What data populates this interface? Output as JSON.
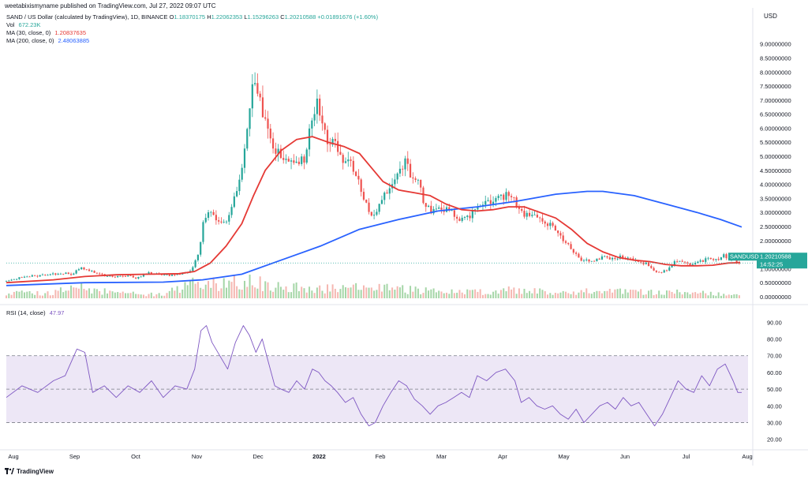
{
  "header": {
    "published_by": "weetabixismyname published on TradingView.com, Jul 27, 2022 09:07 UTC"
  },
  "legend": {
    "symbol": "SAND / US Dollar (calculated by TradingView), 1D, BINANCE",
    "o_label": "O",
    "o_value": "1.18370175",
    "h_label": "H",
    "h_value": "1.22062353",
    "l_label": "L",
    "l_value": "1.15296263",
    "c_label": "C",
    "c_value": "1.20210588",
    "change": "+0.01891676 (+1.60%)",
    "vol_label": "Vol",
    "vol_value": "672.23K",
    "ma30_label": "MA (30, close, 0)",
    "ma30_value": "1.20837635",
    "ma200_label": "MA (200, close, 0)",
    "ma200_value": "2.48063885",
    "rsi_label": "RSI (14, close)",
    "rsi_value": "47.97"
  },
  "price_axis": {
    "currency": "USD",
    "ticks": [
      "9.00000000",
      "8.50000000",
      "8.00000000",
      "7.50000000",
      "7.00000000",
      "6.50000000",
      "6.00000000",
      "5.50000000",
      "5.00000000",
      "4.50000000",
      "4.00000000",
      "3.50000000",
      "3.00000000",
      "2.50000000",
      "2.00000000",
      "1.50000000",
      "1.00000000",
      "0.50000000",
      "0.00000000"
    ],
    "last_price_label": "1.20210588",
    "symbol_tag": "SANDUSD",
    "countdown": "14:52:25"
  },
  "rsi_axis": {
    "ticks": [
      "90.00",
      "80.00",
      "70.00",
      "60.00",
      "50.00",
      "40.00",
      "30.00",
      "20.00"
    ]
  },
  "time_axis": {
    "labels": [
      "Aug",
      "Sep",
      "Oct",
      "Nov",
      "Dec",
      "2022",
      "Feb",
      "Mar",
      "Apr",
      "May",
      "Jun",
      "Jul",
      "Aug"
    ]
  },
  "footer": {
    "brand": "TradingView"
  },
  "colors": {
    "up": "#26a69a",
    "down": "#ef5350",
    "ma30": "#e53935",
    "ma200": "#2962ff",
    "rsi_line": "#7e57c2",
    "rsi_band": "#ede7f6",
    "tag_bg": "#26a69a"
  },
  "chart_data": {
    "type": "candlestick",
    "ylim_price": [
      0,
      9.3
    ],
    "ylim_rsi": [
      17,
      93
    ],
    "rsi_levels": [
      70,
      50,
      30
    ],
    "price_path": [
      [
        0,
        0.55
      ],
      [
        20,
        0.7
      ],
      [
        40,
        0.75
      ],
      [
        60,
        0.8
      ],
      [
        70,
        0.85
      ],
      [
        85,
        0.8
      ],
      [
        95,
        1.05
      ],
      [
        110,
        0.9
      ],
      [
        125,
        0.75
      ],
      [
        140,
        0.7
      ],
      [
        155,
        0.75
      ],
      [
        165,
        0.65
      ],
      [
        180,
        0.85
      ],
      [
        195,
        0.8
      ],
      [
        215,
        0.75
      ],
      [
        235,
        0.9
      ],
      [
        245,
        1.6
      ],
      [
        252,
        2.8
      ],
      [
        262,
        3.1
      ],
      [
        272,
        2.5
      ],
      [
        282,
        2.8
      ],
      [
        292,
        3.6
      ],
      [
        302,
        5.0
      ],
      [
        308,
        6.2
      ],
      [
        314,
        7.6
      ],
      [
        320,
        7.3
      ],
      [
        326,
        6.8
      ],
      [
        332,
        5.8
      ],
      [
        340,
        5.4
      ],
      [
        350,
        5.1
      ],
      [
        360,
        4.9
      ],
      [
        372,
        4.7
      ],
      [
        382,
        5.0
      ],
      [
        390,
        6.5
      ],
      [
        396,
        6.9
      ],
      [
        404,
        6.0
      ],
      [
        412,
        5.5
      ],
      [
        420,
        5.3
      ],
      [
        430,
        4.9
      ],
      [
        440,
        4.6
      ],
      [
        450,
        4.0
      ],
      [
        460,
        3.2
      ],
      [
        466,
        2.8
      ],
      [
        472,
        3.0
      ],
      [
        480,
        3.6
      ],
      [
        490,
        4.0
      ],
      [
        500,
        4.5
      ],
      [
        508,
        4.8
      ],
      [
        516,
        4.3
      ],
      [
        524,
        4.1
      ],
      [
        532,
        3.4
      ],
      [
        540,
        3.0
      ],
      [
        550,
        3.2
      ],
      [
        560,
        3.1
      ],
      [
        570,
        2.9
      ],
      [
        580,
        2.8
      ],
      [
        590,
        2.9
      ],
      [
        600,
        3.1
      ],
      [
        612,
        3.3
      ],
      [
        624,
        3.5
      ],
      [
        636,
        3.6
      ],
      [
        646,
        3.5
      ],
      [
        654,
        3.0
      ],
      [
        664,
        2.9
      ],
      [
        674,
        2.8
      ],
      [
        684,
        2.7
      ],
      [
        694,
        2.5
      ],
      [
        704,
        2.2
      ],
      [
        714,
        1.9
      ],
      [
        724,
        1.6
      ],
      [
        734,
        1.3
      ],
      [
        744,
        1.25
      ],
      [
        754,
        1.35
      ],
      [
        764,
        1.4
      ],
      [
        774,
        1.35
      ],
      [
        784,
        1.45
      ],
      [
        794,
        1.35
      ],
      [
        804,
        1.25
      ],
      [
        814,
        1.2
      ],
      [
        824,
        0.95
      ],
      [
        834,
        0.85
      ],
      [
        844,
        1.0
      ],
      [
        854,
        1.3
      ],
      [
        864,
        1.2
      ],
      [
        874,
        1.1
      ],
      [
        884,
        1.25
      ],
      [
        894,
        1.35
      ],
      [
        904,
        1.3
      ],
      [
        914,
        1.45
      ],
      [
        924,
        1.35
      ],
      [
        932,
        1.2
      ]
    ],
    "ma30_path": [
      [
        0,
        0.5
      ],
      [
        60,
        0.6
      ],
      [
        100,
        0.72
      ],
      [
        140,
        0.78
      ],
      [
        180,
        0.8
      ],
      [
        220,
        0.82
      ],
      [
        240,
        0.9
      ],
      [
        260,
        1.2
      ],
      [
        280,
        1.8
      ],
      [
        300,
        2.6
      ],
      [
        315,
        3.6
      ],
      [
        330,
        4.5
      ],
      [
        350,
        5.2
      ],
      [
        370,
        5.6
      ],
      [
        390,
        5.7
      ],
      [
        410,
        5.5
      ],
      [
        430,
        5.35
      ],
      [
        450,
        5.1
      ],
      [
        465,
        4.6
      ],
      [
        480,
        4.1
      ],
      [
        500,
        3.8
      ],
      [
        520,
        3.7
      ],
      [
        540,
        3.6
      ],
      [
        560,
        3.3
      ],
      [
        580,
        3.1
      ],
      [
        600,
        3.05
      ],
      [
        620,
        3.1
      ],
      [
        640,
        3.2
      ],
      [
        660,
        3.2
      ],
      [
        680,
        3.0
      ],
      [
        700,
        2.8
      ],
      [
        720,
        2.4
      ],
      [
        740,
        1.9
      ],
      [
        760,
        1.6
      ],
      [
        780,
        1.4
      ],
      [
        800,
        1.3
      ],
      [
        820,
        1.25
      ],
      [
        840,
        1.15
      ],
      [
        860,
        1.1
      ],
      [
        880,
        1.1
      ],
      [
        900,
        1.12
      ],
      [
        920,
        1.2
      ],
      [
        935,
        1.21
      ]
    ],
    "ma200_path": [
      [
        0,
        0.4
      ],
      [
        100,
        0.5
      ],
      [
        200,
        0.52
      ],
      [
        250,
        0.6
      ],
      [
        300,
        0.8
      ],
      [
        350,
        1.3
      ],
      [
        400,
        1.8
      ],
      [
        450,
        2.4
      ],
      [
        500,
        2.75
      ],
      [
        550,
        3.05
      ],
      [
        600,
        3.2
      ],
      [
        650,
        3.4
      ],
      [
        700,
        3.65
      ],
      [
        740,
        3.75
      ],
      [
        760,
        3.75
      ],
      [
        800,
        3.6
      ],
      [
        840,
        3.3
      ],
      [
        880,
        3.0
      ],
      [
        910,
        2.75
      ],
      [
        937,
        2.48
      ]
    ],
    "rsi_path": [
      [
        0,
        45
      ],
      [
        20,
        52
      ],
      [
        40,
        48
      ],
      [
        60,
        55
      ],
      [
        75,
        58
      ],
      [
        90,
        74
      ],
      [
        100,
        72
      ],
      [
        110,
        48
      ],
      [
        125,
        52
      ],
      [
        140,
        45
      ],
      [
        155,
        52
      ],
      [
        170,
        48
      ],
      [
        185,
        55
      ],
      [
        200,
        45
      ],
      [
        215,
        52
      ],
      [
        230,
        50
      ],
      [
        240,
        62
      ],
      [
        248,
        85
      ],
      [
        255,
        88
      ],
      [
        262,
        78
      ],
      [
        272,
        70
      ],
      [
        282,
        62
      ],
      [
        292,
        78
      ],
      [
        302,
        88
      ],
      [
        310,
        82
      ],
      [
        318,
        72
      ],
      [
        326,
        80
      ],
      [
        334,
        66
      ],
      [
        342,
        52
      ],
      [
        350,
        50
      ],
      [
        360,
        48
      ],
      [
        370,
        55
      ],
      [
        380,
        50
      ],
      [
        390,
        62
      ],
      [
        398,
        60
      ],
      [
        406,
        55
      ],
      [
        414,
        52
      ],
      [
        422,
        48
      ],
      [
        432,
        42
      ],
      [
        442,
        45
      ],
      [
        452,
        35
      ],
      [
        462,
        28
      ],
      [
        470,
        30
      ],
      [
        480,
        40
      ],
      [
        490,
        48
      ],
      [
        500,
        55
      ],
      [
        510,
        52
      ],
      [
        520,
        44
      ],
      [
        530,
        40
      ],
      [
        540,
        35
      ],
      [
        550,
        40
      ],
      [
        560,
        42
      ],
      [
        570,
        45
      ],
      [
        580,
        48
      ],
      [
        590,
        45
      ],
      [
        600,
        58
      ],
      [
        612,
        55
      ],
      [
        624,
        60
      ],
      [
        636,
        62
      ],
      [
        648,
        55
      ],
      [
        656,
        42
      ],
      [
        666,
        45
      ],
      [
        676,
        40
      ],
      [
        686,
        38
      ],
      [
        696,
        40
      ],
      [
        706,
        35
      ],
      [
        716,
        32
      ],
      [
        726,
        38
      ],
      [
        736,
        30
      ],
      [
        746,
        35
      ],
      [
        756,
        40
      ],
      [
        766,
        42
      ],
      [
        776,
        38
      ],
      [
        786,
        45
      ],
      [
        796,
        40
      ],
      [
        806,
        42
      ],
      [
        816,
        35
      ],
      [
        826,
        28
      ],
      [
        836,
        35
      ],
      [
        846,
        45
      ],
      [
        856,
        55
      ],
      [
        866,
        50
      ],
      [
        876,
        48
      ],
      [
        886,
        58
      ],
      [
        896,
        52
      ],
      [
        906,
        62
      ],
      [
        916,
        65
      ],
      [
        926,
        55
      ],
      [
        932,
        48
      ],
      [
        937,
        48
      ]
    ],
    "volume_path": [
      [
        0,
        0.3
      ],
      [
        50,
        0.25
      ],
      [
        95,
        0.5
      ],
      [
        140,
        0.25
      ],
      [
        200,
        0.2
      ],
      [
        245,
        0.8
      ],
      [
        260,
        0.7
      ],
      [
        300,
        0.9
      ],
      [
        315,
        1.0
      ],
      [
        330,
        0.6
      ],
      [
        400,
        0.45
      ],
      [
        460,
        0.55
      ],
      [
        520,
        0.4
      ],
      [
        600,
        0.3
      ],
      [
        640,
        0.4
      ],
      [
        700,
        0.3
      ],
      [
        740,
        0.35
      ],
      [
        820,
        0.3
      ],
      [
        860,
        0.3
      ],
      [
        937,
        0.15
      ]
    ]
  }
}
